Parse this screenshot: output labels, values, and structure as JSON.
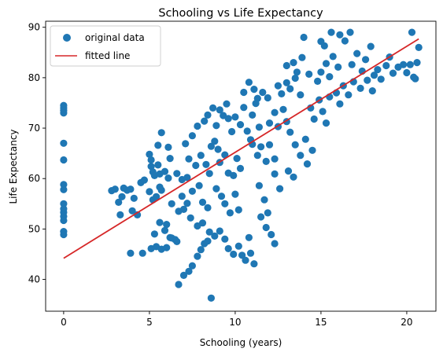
{
  "chart_data": {
    "type": "scatter",
    "title": "Schooling vs Life Expectancy",
    "xlabel": "Schooling (years)",
    "ylabel": "Life Expectancy",
    "xlim": [
      -1.05,
      21.7
    ],
    "ylim": [
      33.7,
      91.2
    ],
    "xticks": [
      0,
      5,
      10,
      15,
      20
    ],
    "yticks": [
      40,
      50,
      60,
      70,
      80,
      90
    ],
    "grid": false,
    "legend": {
      "position": "top-left",
      "entries": [
        "original data",
        "fitted line"
      ]
    },
    "colors": {
      "points": "#1f77b4",
      "line": "#d62728"
    },
    "series": [
      {
        "name": "original data",
        "kind": "scatter",
        "points": [
          [
            0,
            74.5
          ],
          [
            0,
            74.0
          ],
          [
            0,
            73.5
          ],
          [
            0,
            73.0
          ],
          [
            0,
            67.0
          ],
          [
            0,
            63.7
          ],
          [
            0,
            58.8
          ],
          [
            0,
            57.8
          ],
          [
            0,
            55.0
          ],
          [
            0,
            54.0
          ],
          [
            0,
            53.3
          ],
          [
            0,
            52.5
          ],
          [
            0,
            51.7
          ],
          [
            0,
            49.5
          ],
          [
            0,
            48.9
          ],
          [
            2.8,
            57.6
          ],
          [
            3.0,
            57.9
          ],
          [
            3.2,
            55.3
          ],
          [
            3.4,
            56.4
          ],
          [
            3.7,
            57.7
          ],
          [
            3.3,
            52.8
          ],
          [
            3.9,
            57.9
          ],
          [
            3.5,
            58.1
          ],
          [
            4.1,
            56.1
          ],
          [
            4.0,
            53.6
          ],
          [
            3.9,
            45.2
          ],
          [
            4.6,
            45.2
          ],
          [
            4.3,
            52.8
          ],
          [
            4.5,
            59.2
          ],
          [
            4.7,
            59.7
          ],
          [
            5.0,
            57.4
          ],
          [
            5.2,
            55.8
          ],
          [
            5.4,
            56.4
          ],
          [
            5.6,
            58.3
          ],
          [
            5.7,
            57.7
          ],
          [
            5.0,
            64.8
          ],
          [
            5.1,
            63.7
          ],
          [
            5.1,
            62.4
          ],
          [
            5.2,
            61.3
          ],
          [
            5.3,
            60.6
          ],
          [
            5.5,
            62.7
          ],
          [
            5.6,
            60.9
          ],
          [
            5.9,
            61.4
          ],
          [
            6.1,
            60.1
          ],
          [
            5.7,
            69.1
          ],
          [
            5.5,
            66.6
          ],
          [
            6.1,
            66.2
          ],
          [
            6.2,
            64.0
          ],
          [
            5.1,
            46.1
          ],
          [
            5.4,
            46.5
          ],
          [
            5.7,
            46.0
          ],
          [
            6.0,
            46.3
          ],
          [
            6.3,
            48.2
          ],
          [
            6.5,
            47.9
          ],
          [
            6.6,
            47.5
          ],
          [
            5.3,
            49.0
          ],
          [
            5.9,
            49.7
          ],
          [
            6.2,
            48.3
          ],
          [
            5.6,
            51.3
          ],
          [
            6.0,
            50.9
          ],
          [
            6.7,
            39.0
          ],
          [
            7.0,
            40.8
          ],
          [
            7.3,
            41.6
          ],
          [
            7.5,
            42.7
          ],
          [
            7.8,
            44.6
          ],
          [
            8.0,
            45.9
          ],
          [
            8.2,
            47.1
          ],
          [
            8.4,
            47.6
          ],
          [
            8.6,
            36.3
          ],
          [
            6.6,
            61.0
          ],
          [
            6.9,
            59.8
          ],
          [
            7.2,
            60.2
          ],
          [
            7.5,
            57.5
          ],
          [
            7.9,
            58.6
          ],
          [
            8.1,
            55.3
          ],
          [
            8.4,
            54.2
          ],
          [
            7.3,
            63.9
          ],
          [
            7.7,
            62.6
          ],
          [
            8.0,
            64.6
          ],
          [
            8.3,
            62.8
          ],
          [
            8.5,
            61.0
          ],
          [
            8.6,
            66.4
          ],
          [
            8.8,
            67.4
          ],
          [
            7.1,
            66.9
          ],
          [
            7.5,
            68.5
          ],
          [
            7.8,
            70.4
          ],
          [
            8.2,
            71.4
          ],
          [
            8.4,
            72.6
          ],
          [
            8.7,
            74.0
          ],
          [
            8.9,
            70.5
          ],
          [
            9.1,
            73.6
          ],
          [
            9.3,
            72.5
          ],
          [
            9.5,
            74.8
          ],
          [
            9.6,
            71.9
          ],
          [
            9.8,
            69.3
          ],
          [
            9.0,
            65.8
          ],
          [
            9.1,
            63.2
          ],
          [
            9.4,
            64.7
          ],
          [
            9.6,
            61.1
          ],
          [
            9.9,
            60.6
          ],
          [
            10.1,
            64.0
          ],
          [
            10.3,
            62.0
          ],
          [
            8.9,
            58.0
          ],
          [
            9.2,
            56.5
          ],
          [
            9.4,
            55.0
          ],
          [
            9.7,
            53.2
          ],
          [
            10.0,
            56.9
          ],
          [
            10.2,
            53.8
          ],
          [
            9.1,
            49.6
          ],
          [
            9.4,
            48.0
          ],
          [
            9.6,
            46.1
          ],
          [
            9.9,
            45.0
          ],
          [
            10.2,
            46.6
          ],
          [
            10.4,
            44.8
          ],
          [
            10.6,
            43.8
          ],
          [
            10.9,
            45.2
          ],
          [
            11.1,
            43.1
          ],
          [
            10.8,
            48.3
          ],
          [
            10.0,
            72.2
          ],
          [
            10.3,
            70.7
          ],
          [
            10.5,
            74.1
          ],
          [
            10.7,
            69.4
          ],
          [
            11.0,
            72.6
          ],
          [
            11.2,
            74.9
          ],
          [
            10.5,
            77.1
          ],
          [
            10.8,
            79.1
          ],
          [
            11.1,
            77.7
          ],
          [
            11.3,
            75.9
          ],
          [
            11.6,
            77.1
          ],
          [
            11.9,
            76.0
          ],
          [
            11.0,
            66.8
          ],
          [
            11.3,
            64.6
          ],
          [
            11.5,
            66.3
          ],
          [
            11.8,
            63.4
          ],
          [
            12.0,
            66.7
          ],
          [
            12.3,
            63.9
          ],
          [
            11.4,
            58.6
          ],
          [
            11.7,
            55.8
          ],
          [
            11.9,
            53.2
          ],
          [
            12.1,
            48.9
          ],
          [
            12.3,
            47.1
          ],
          [
            12.0,
            71.0
          ],
          [
            12.3,
            73.1
          ],
          [
            12.5,
            70.3
          ],
          [
            12.8,
            73.7
          ],
          [
            13.0,
            71.3
          ],
          [
            13.2,
            69.2
          ],
          [
            12.5,
            78.4
          ],
          [
            12.7,
            76.8
          ],
          [
            13.0,
            79.0
          ],
          [
            13.2,
            77.8
          ],
          [
            13.5,
            79.9
          ],
          [
            13.8,
            76.6
          ],
          [
            13.0,
            82.4
          ],
          [
            13.4,
            83.0
          ],
          [
            13.6,
            81.1
          ],
          [
            13.9,
            84.0
          ],
          [
            14.0,
            88.0
          ],
          [
            14.3,
            80.7
          ],
          [
            13.5,
            66.7
          ],
          [
            13.8,
            64.6
          ],
          [
            14.1,
            67.8
          ],
          [
            14.2,
            62.9
          ],
          [
            14.5,
            65.6
          ],
          [
            14.4,
            74.0
          ],
          [
            14.6,
            71.8
          ],
          [
            14.9,
            75.6
          ],
          [
            15.1,
            73.3
          ],
          [
            15.3,
            71.0
          ],
          [
            15.5,
            76.2
          ],
          [
            14.8,
            79.3
          ],
          [
            15.0,
            81.1
          ],
          [
            15.3,
            82.8
          ],
          [
            15.5,
            80.2
          ],
          [
            15.7,
            84.2
          ],
          [
            16.0,
            82.1
          ],
          [
            15.0,
            87.2
          ],
          [
            15.2,
            86.3
          ],
          [
            15.6,
            89.0
          ],
          [
            16.1,
            88.5
          ],
          [
            16.4,
            87.3
          ],
          [
            16.7,
            89.0
          ],
          [
            15.9,
            77.0
          ],
          [
            16.1,
            74.8
          ],
          [
            16.3,
            78.4
          ],
          [
            16.6,
            76.6
          ],
          [
            16.9,
            79.2
          ],
          [
            16.8,
            82.6
          ],
          [
            17.1,
            84.8
          ],
          [
            17.4,
            81.3
          ],
          [
            17.6,
            83.6
          ],
          [
            17.9,
            86.2
          ],
          [
            18.1,
            80.5
          ],
          [
            17.3,
            77.9
          ],
          [
            17.7,
            79.5
          ],
          [
            18.0,
            77.4
          ],
          [
            18.3,
            81.6
          ],
          [
            18.5,
            79.7
          ],
          [
            18.8,
            82.4
          ],
          [
            19.0,
            84.1
          ],
          [
            19.2,
            80.9
          ],
          [
            19.5,
            82.1
          ],
          [
            19.8,
            82.6
          ],
          [
            20.0,
            81.0
          ],
          [
            20.2,
            82.6
          ],
          [
            20.3,
            89.0
          ],
          [
            20.4,
            80.1
          ],
          [
            20.6,
            83.0
          ],
          [
            20.7,
            86.0
          ],
          [
            20.5,
            79.8
          ],
          [
            12.3,
            60.9
          ],
          [
            12.6,
            58.0
          ],
          [
            13.1,
            61.5
          ],
          [
            13.4,
            60.3
          ],
          [
            11.5,
            52.4
          ],
          [
            11.8,
            50.3
          ],
          [
            7.0,
            53.9
          ],
          [
            7.4,
            52.2
          ],
          [
            7.8,
            50.6
          ],
          [
            8.1,
            51.2
          ],
          [
            8.5,
            49.4
          ],
          [
            8.8,
            48.6
          ],
          [
            6.3,
            55.0
          ],
          [
            6.7,
            53.5
          ],
          [
            6.9,
            56.5
          ],
          [
            7.2,
            55.1
          ],
          [
            10.9,
            67.7
          ],
          [
            11.4,
            70.2
          ]
        ]
      },
      {
        "name": "fitted line",
        "kind": "line",
        "points": [
          [
            0,
            44.2
          ],
          [
            20.7,
            87.7
          ]
        ]
      }
    ]
  }
}
